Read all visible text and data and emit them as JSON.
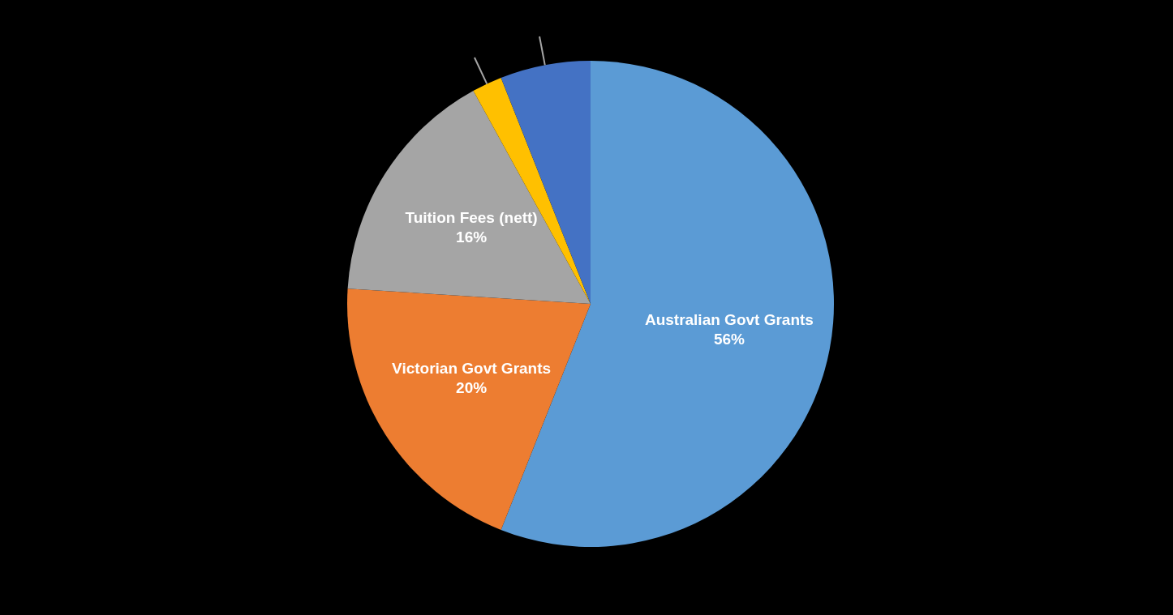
{
  "chart_data": {
    "type": "pie",
    "categories": [
      "Australian Govt Grants",
      "Victorian Govt Grants",
      "Tuition Fees (nett)",
      null,
      null
    ],
    "values": [
      56,
      20,
      16,
      2,
      6
    ],
    "value_labels": [
      "56%",
      "20%",
      "16%",
      null,
      null
    ],
    "colors": [
      "#5b9bd5",
      "#ed7d31",
      "#a5a5a5",
      "#ffc000",
      "#4472c4"
    ]
  }
}
